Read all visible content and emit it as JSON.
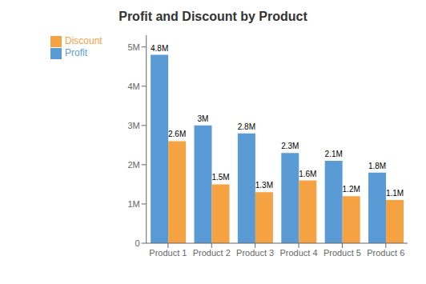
{
  "chart_data": {
    "type": "bar",
    "title": "Profit and Discount by Product",
    "categories": [
      "Product 1",
      "Product 2",
      "Product 3",
      "Product 4",
      "Product 5",
      "Product 6"
    ],
    "series": [
      {
        "name": "Profit",
        "color": "#5B9BD5",
        "values": [
          4800000,
          3000000,
          2800000,
          2300000,
          2100000,
          1800000
        ],
        "value_labels": [
          "4.8M",
          "3M",
          "2.8M",
          "2.3M",
          "2.1M",
          "1.8M"
        ]
      },
      {
        "name": "Discount",
        "color": "#F4A242",
        "values": [
          2600000,
          1500000,
          1300000,
          1600000,
          1200000,
          1100000
        ],
        "value_labels": [
          "2.6M",
          "1.5M",
          "1.3M",
          "1.6M",
          "1.2M",
          "1.1M"
        ]
      }
    ],
    "ylim": [
      0,
      5300000
    ],
    "yticks": [
      0,
      {
        "value": 1000000,
        "label": "1M"
      },
      {
        "value": 2000000,
        "label": "2M"
      },
      {
        "value": 3000000,
        "label": "3M"
      },
      {
        "value": 4000000,
        "label": "4M"
      },
      {
        "value": 5000000,
        "label": "5M"
      }
    ],
    "grid": false,
    "legend": "upper left",
    "data_labels": true
  }
}
